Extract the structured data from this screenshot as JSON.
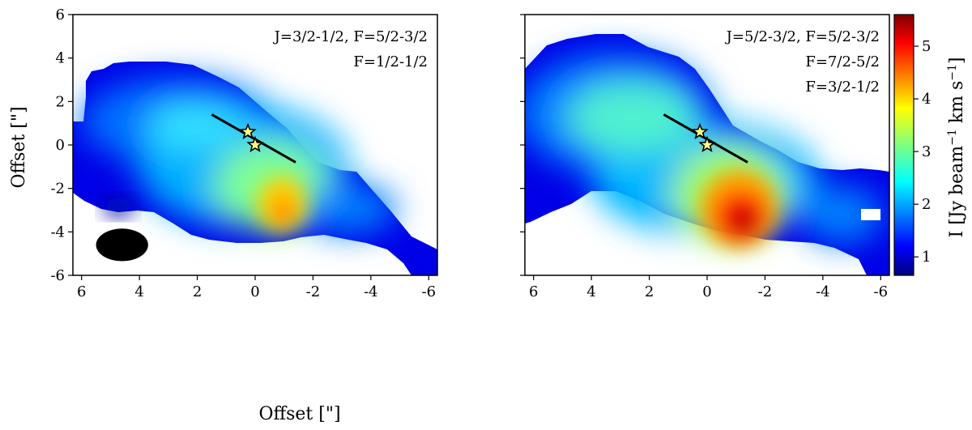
{
  "chart_data": [
    {
      "type": "heatmap",
      "panel": "left",
      "xlabel": "Offset [\"]",
      "ylabel": "Offset [\"]",
      "xlim": [
        6.3,
        -6.3
      ],
      "ylim": [
        -6,
        6
      ],
      "xticks": [
        6,
        4,
        2,
        0,
        -2,
        -4,
        -6
      ],
      "xtick_labels": [
        "6",
        "4",
        "2",
        "0",
        "-2",
        "-4",
        "-6"
      ],
      "yticks": [
        6,
        4,
        2,
        0,
        -2,
        -4,
        -6
      ],
      "ytick_labels": [
        "6",
        "4",
        "2",
        "0",
        "-2",
        "-4",
        "-6"
      ],
      "annotations": [
        "J=3/2-1/2, F=5/2-3/2",
        "F=1/2-1/2"
      ],
      "peak_intensity": 4.3,
      "peak_position": [
        -1.0,
        -1.2
      ],
      "line_segment": {
        "x": [
          1.5,
          -1.4
        ],
        "y": [
          1.4,
          -0.8
        ]
      },
      "stars": [
        {
          "x": 0.25,
          "y": 0.6
        },
        {
          "x": 0.0,
          "y": 0.0
        }
      ],
      "beam": {
        "x": 4.6,
        "y": -4.6,
        "major": 1.8,
        "minor": 1.5
      }
    },
    {
      "type": "heatmap",
      "panel": "right",
      "xlabel": "Offset [\"]",
      "ylabel": "",
      "xlim": [
        6.3,
        -6.3
      ],
      "ylim": [
        -6,
        6
      ],
      "xticks": [
        6,
        4,
        2,
        0,
        -2,
        -4,
        -6
      ],
      "xtick_labels": [
        "6",
        "4",
        "2",
        "0",
        "-2",
        "-4",
        "-6"
      ],
      "yticks": [
        6,
        4,
        2,
        0,
        -2,
        -4,
        -6
      ],
      "annotations": [
        "J=5/2-3/2, F=5/2-3/2",
        "F=7/2-5/2",
        "F=3/2-1/2"
      ],
      "peak_intensity": 5.5,
      "peak_position": [
        -1.2,
        -1.2
      ],
      "line_segment": {
        "x": [
          1.5,
          -1.4
        ],
        "y": [
          1.4,
          -0.8
        ]
      },
      "stars": [
        {
          "x": 0.25,
          "y": 0.6
        },
        {
          "x": 0.0,
          "y": 0.0
        }
      ]
    }
  ],
  "colorbar": {
    "label": "I [Jy beam",
    "exp1": "−1",
    "label_mid": " km s",
    "exp2": "−1",
    "label_end": "]",
    "range": [
      0.65,
      5.6
    ],
    "ticks": [
      1,
      2,
      3,
      4,
      5
    ],
    "tick_labels": [
      "1",
      "2",
      "3",
      "4",
      "5"
    ],
    "colormap": "jet"
  }
}
